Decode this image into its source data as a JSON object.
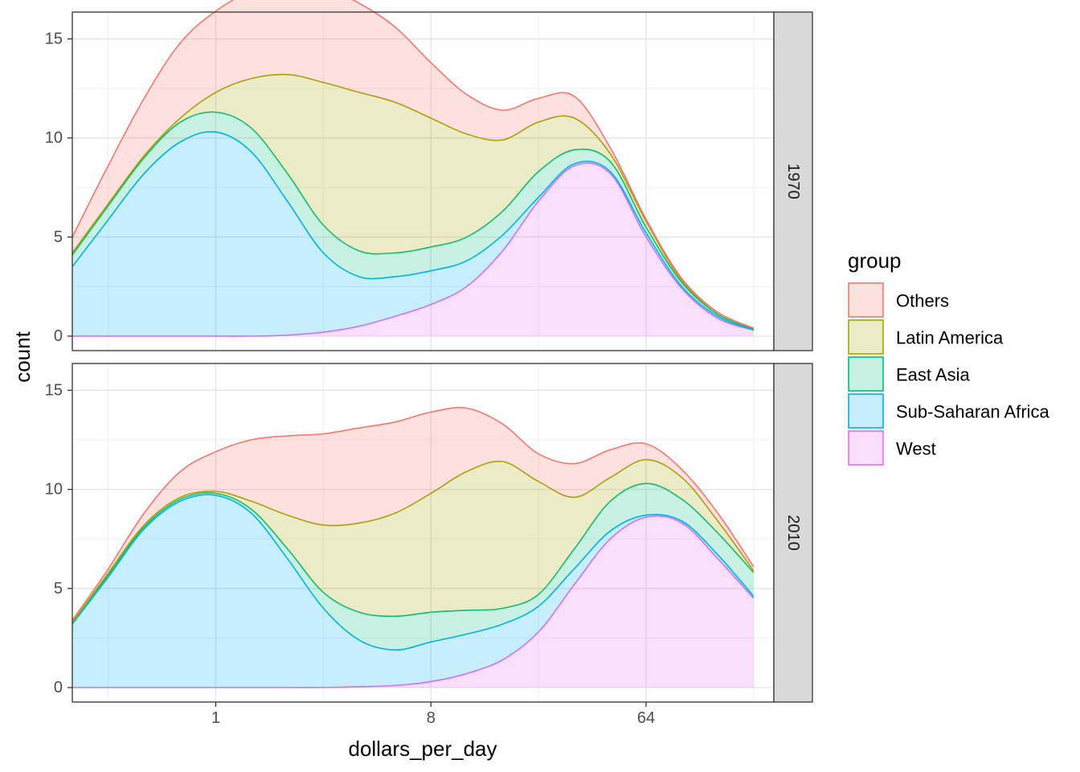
{
  "chart_data": {
    "type": "area",
    "stacked": true,
    "xlabel": "dollars_per_day",
    "ylabel": "count",
    "x_scale": "log2",
    "x_ticks": [
      {
        "value": 1,
        "label": "1"
      },
      {
        "value": 8,
        "label": "8"
      },
      {
        "value": 64,
        "label": "64"
      }
    ],
    "xlim": [
      0.25,
      220
    ],
    "ylim": [
      0,
      18
    ],
    "y_ticks": [
      {
        "value": 0,
        "label": "0"
      },
      {
        "value": 5,
        "label": "5"
      },
      {
        "value": 10,
        "label": "10"
      },
      {
        "value": 15,
        "label": "15"
      }
    ],
    "grid": true,
    "legend": {
      "title": "group",
      "position": "right",
      "entries": [
        {
          "name": "Others",
          "color": "#F8766D"
        },
        {
          "name": "Latin America",
          "color": "#A3A500"
        },
        {
          "name": "East Asia",
          "color": "#00BF7D"
        },
        {
          "name": "Sub-Saharan Africa",
          "color": "#00B0F6"
        },
        {
          "name": "West",
          "color": "#E76BF3"
        }
      ]
    },
    "colors": {
      "Others": "#F8766D",
      "Latin America": "#A3A500",
      "East Asia": "#00BF7D",
      "Sub-Saharan Africa": "#00B0F6",
      "West": "#E76BF3"
    },
    "x": [
      0.25,
      0.35,
      0.5,
      0.71,
      1,
      1.41,
      2,
      2.83,
      4,
      5.66,
      8,
      11.3,
      16,
      22.6,
      32,
      45.3,
      64,
      90.5,
      128,
      181
    ],
    "panels": [
      {
        "strip": "1970",
        "cumulative": [
          {
            "name": "West",
            "values": [
              0,
              0,
              0,
              0,
              0,
              0,
              0.05,
              0.2,
              0.5,
              1.0,
              1.6,
              2.5,
              4.3,
              6.8,
              8.6,
              8.2,
              5.0,
              2.4,
              0.9,
              0.3
            ]
          },
          {
            "name": "Sub-Saharan Africa",
            "values": [
              3.5,
              5.8,
              8.2,
              9.8,
              10.3,
              9.3,
              6.8,
              4.2,
              3.0,
              3.0,
              3.3,
              3.8,
              5.1,
              7.0,
              8.7,
              8.3,
              5.2,
              2.5,
              1.0,
              0.3
            ]
          },
          {
            "name": "East Asia",
            "values": [
              4.1,
              6.5,
              9.0,
              10.8,
              11.3,
              10.5,
              8.2,
              5.6,
              4.3,
              4.2,
              4.5,
              5.0,
              6.3,
              8.3,
              9.4,
              8.8,
              5.5,
              2.7,
              1.1,
              0.35
            ]
          },
          {
            "name": "Latin America",
            "values": [
              4.2,
              6.6,
              9.1,
              11.0,
              12.3,
              13.0,
              13.2,
              12.8,
              12.3,
              11.8,
              11.0,
              10.2,
              9.9,
              10.8,
              11.0,
              9.2,
              5.8,
              2.8,
              1.2,
              0.4
            ]
          },
          {
            "name": "Others",
            "values": [
              5.0,
              8.5,
              12.0,
              14.8,
              16.4,
              17.4,
              17.8,
              17.6,
              16.8,
              15.6,
              13.8,
              12.2,
              11.4,
              12.0,
              12.1,
              9.5,
              5.9,
              2.9,
              1.2,
              0.4
            ]
          }
        ]
      },
      {
        "strip": "2010",
        "cumulative": [
          {
            "name": "West",
            "values": [
              0,
              0,
              0,
              0,
              0,
              0,
              0,
              0,
              0.05,
              0.1,
              0.3,
              0.7,
              1.4,
              2.8,
              5.2,
              7.5,
              8.6,
              8.3,
              6.5,
              4.5
            ]
          },
          {
            "name": "Sub-Saharan Africa",
            "values": [
              3.2,
              5.5,
              8.0,
              9.4,
              9.7,
              8.8,
              6.5,
              4.0,
              2.4,
              1.9,
              2.3,
              2.7,
              3.2,
              4.1,
              6.0,
              7.9,
              8.7,
              8.4,
              6.7,
              4.6
            ]
          },
          {
            "name": "East Asia",
            "values": [
              3.3,
              5.6,
              8.1,
              9.5,
              9.8,
              9.0,
              7.0,
              4.8,
              3.8,
              3.6,
              3.8,
              3.9,
              4.0,
              4.7,
              7.0,
              9.4,
              10.3,
              9.5,
              7.8,
              5.8
            ]
          },
          {
            "name": "Latin America",
            "values": [
              3.3,
              5.7,
              8.2,
              9.6,
              9.9,
              9.4,
              8.7,
              8.2,
              8.3,
              8.8,
              9.8,
              10.9,
              11.4,
              10.4,
              9.6,
              10.6,
              11.5,
              10.6,
              8.4,
              5.9
            ]
          },
          {
            "name": "Others",
            "values": [
              3.4,
              5.9,
              8.8,
              10.9,
              11.9,
              12.5,
              12.7,
              12.8,
              13.1,
              13.4,
              13.9,
              14.1,
              13.3,
              11.8,
              11.3,
              12.0,
              12.3,
              11.0,
              8.8,
              6.1
            ]
          }
        ]
      }
    ]
  }
}
